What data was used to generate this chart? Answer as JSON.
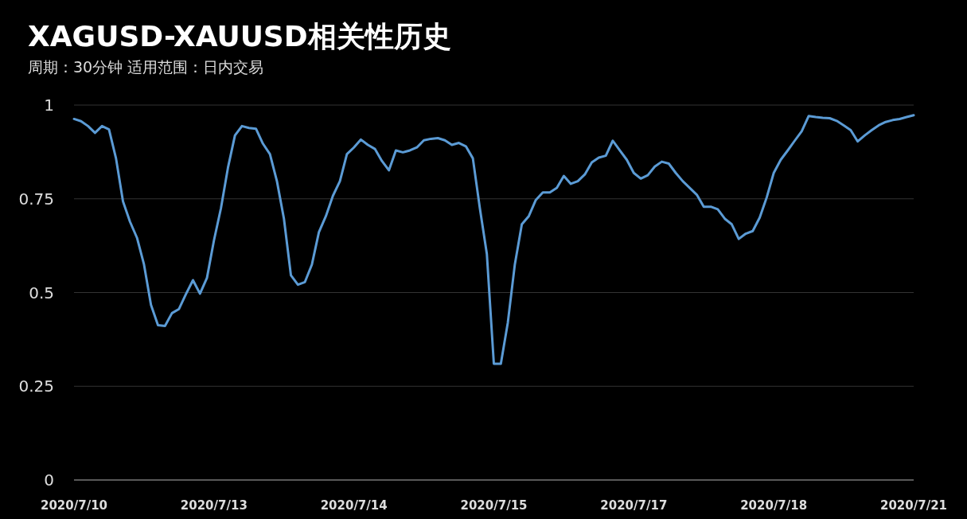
{
  "chart_data": {
    "type": "line",
    "title": "XAGUSD-XAUUSD相关性历史",
    "subtitle": "周期：30分钟  适用范围：日内交易",
    "categories": [
      "2020/7/10",
      null,
      null,
      null,
      null,
      null,
      null,
      null,
      null,
      null,
      null,
      null,
      null,
      null,
      null,
      null,
      null,
      null,
      null,
      null,
      "2020/7/13",
      null,
      null,
      null,
      null,
      null,
      null,
      null,
      null,
      null,
      null,
      null,
      null,
      null,
      null,
      null,
      null,
      null,
      null,
      null,
      "2020/7/14",
      null,
      null,
      null,
      null,
      null,
      null,
      null,
      null,
      null,
      null,
      null,
      null,
      null,
      null,
      null,
      null,
      null,
      null,
      null,
      "2020/7/15",
      null,
      null,
      null,
      null,
      null,
      null,
      null,
      null,
      null,
      null,
      null,
      null,
      null,
      null,
      null,
      null,
      null,
      null,
      null,
      "2020/7/17",
      null,
      null,
      null,
      null,
      null,
      null,
      null,
      null,
      null,
      null,
      null,
      null,
      null,
      null,
      null,
      null,
      null,
      null,
      null,
      "2020/7/18",
      null,
      null,
      null,
      null,
      null,
      null,
      null,
      null,
      null,
      null,
      null,
      null,
      null,
      null,
      null,
      null,
      null,
      null,
      null,
      "2020/7/21"
    ],
    "series": [
      {
        "color": "#5b9bd5",
        "values": [
          0.963,
          0.957,
          0.944,
          0.926,
          0.944,
          0.935,
          0.858,
          0.743,
          0.689,
          0.646,
          0.575,
          0.467,
          0.413,
          0.411,
          0.445,
          0.456,
          0.496,
          0.533,
          0.497,
          0.539,
          0.639,
          0.725,
          0.833,
          0.919,
          0.944,
          0.939,
          0.937,
          0.897,
          0.869,
          0.797,
          0.697,
          0.546,
          0.521,
          0.528,
          0.575,
          0.661,
          0.704,
          0.758,
          0.797,
          0.869,
          0.887,
          0.908,
          0.894,
          0.883,
          0.851,
          0.826,
          0.879,
          0.874,
          0.879,
          0.887,
          0.906,
          0.91,
          0.912,
          0.906,
          0.894,
          0.899,
          0.89,
          0.858,
          0.725,
          0.603,
          0.31,
          0.31,
          0.42,
          0.575,
          0.682,
          0.704,
          0.747,
          0.767,
          0.767,
          0.779,
          0.811,
          0.79,
          0.797,
          0.815,
          0.847,
          0.86,
          0.865,
          0.905,
          0.879,
          0.854,
          0.819,
          0.804,
          0.813,
          0.836,
          0.849,
          0.844,
          0.819,
          0.797,
          0.779,
          0.761,
          0.729,
          0.729,
          0.722,
          0.697,
          0.682,
          0.643,
          0.657,
          0.664,
          0.7,
          0.754,
          0.819,
          0.854,
          0.879,
          0.905,
          0.93,
          0.971,
          0.968,
          0.966,
          0.965,
          0.958,
          0.946,
          0.933,
          0.903,
          0.919,
          0.933,
          0.946,
          0.955,
          0.96,
          0.963,
          0.968,
          0.973
        ]
      }
    ],
    "ylim": [
      0,
      1
    ],
    "yticks": [
      0,
      0.25,
      0.5,
      0.75,
      1
    ],
    "grid": "y"
  }
}
